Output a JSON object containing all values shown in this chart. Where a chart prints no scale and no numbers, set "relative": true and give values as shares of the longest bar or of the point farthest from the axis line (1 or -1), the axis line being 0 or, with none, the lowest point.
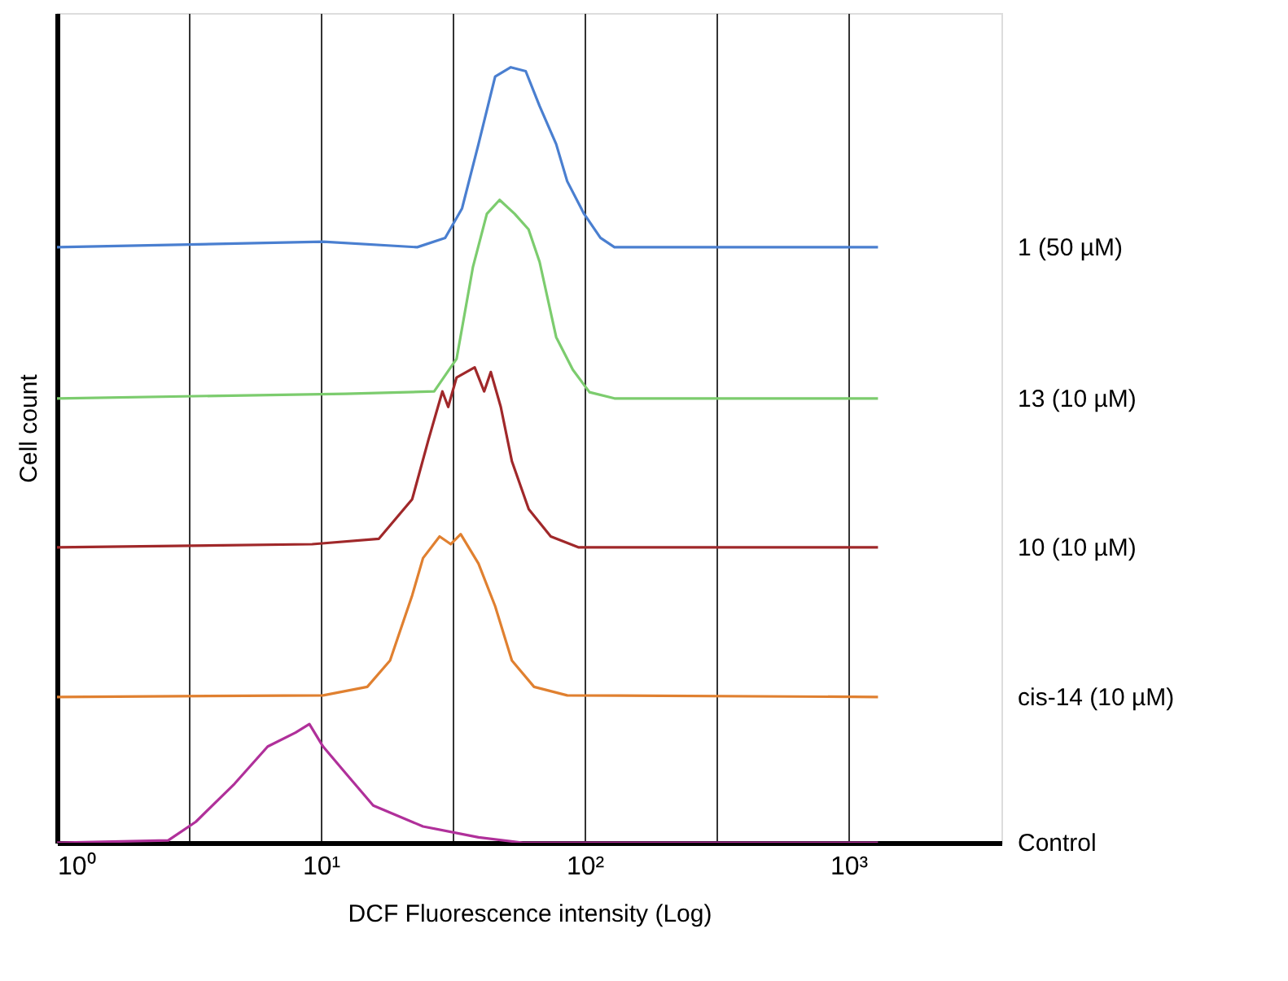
{
  "chart_data": {
    "type": "line",
    "relative": true,
    "xlabel": "DCF Fluorescence intensity (Log)",
    "ylabel": "Cell count",
    "log": "x",
    "grid": "x",
    "legend": false,
    "marker": "none",
    "line_style": "solid",
    "xlim": [
      1,
      3800
    ],
    "xticks": [
      {
        "value": 1,
        "label": "10⁰"
      },
      {
        "value": 3.162,
        "label": null
      },
      {
        "value": 10,
        "label": "10¹"
      },
      {
        "value": 31.62,
        "label": null
      },
      {
        "value": 100,
        "label": "10²"
      },
      {
        "value": 316.2,
        "label": null
      },
      {
        "value": 1000,
        "label": "10³"
      }
    ],
    "series": [
      {
        "name": "1 (50 µM)",
        "color": "#4a7fd0",
        "x": [
          1,
          10.2,
          23.2,
          29.6,
          34.3,
          39.6,
          45.8,
          52.5,
          59.8,
          67.5,
          78.0,
          85.9,
          99.5,
          114.8,
          129.7,
          1294
        ],
        "values": [
          0.768,
          0.775,
          0.768,
          0.78,
          0.818,
          0.901,
          0.988,
          1.0,
          0.995,
          0.95,
          0.901,
          0.853,
          0.811,
          0.78,
          0.768,
          0.768
        ]
      },
      {
        "name": "13 (10 µM)",
        "color": "#7ccc6e",
        "x": [
          1,
          12.4,
          26.9,
          32.7,
          37.7,
          42.6,
          47.6,
          54.3,
          61.3,
          67.5,
          78.0,
          90.2,
          104.3,
          129.7,
          1294
        ],
        "values": [
          0.573,
          0.579,
          0.582,
          0.624,
          0.742,
          0.811,
          0.829,
          0.811,
          0.791,
          0.749,
          0.652,
          0.61,
          0.581,
          0.573,
          0.573
        ]
      },
      {
        "name": "10 (10 µM)",
        "color": "#a0282a",
        "x": [
          1,
          9.27,
          16.6,
          22.2,
          25.6,
          28.9,
          30.4,
          32.7,
          38.3,
          41.6,
          44.1,
          48.1,
          53.0,
          61.4,
          74.4,
          94.6,
          1294
        ],
        "values": [
          0.381,
          0.385,
          0.392,
          0.443,
          0.52,
          0.582,
          0.562,
          0.6,
          0.613,
          0.582,
          0.607,
          0.562,
          0.492,
          0.43,
          0.395,
          0.381,
          0.381
        ]
      },
      {
        "name": "cis-14 (10 µM)",
        "color": "#e08030",
        "x": [
          1,
          10.2,
          15.0,
          18.3,
          22.2,
          24.4,
          28.2,
          31.1,
          33.9,
          39.6,
          45.8,
          53.0,
          64.3,
          85.9,
          1294
        ],
        "values": [
          0.188,
          0.19,
          0.201,
          0.235,
          0.319,
          0.367,
          0.395,
          0.385,
          0.398,
          0.36,
          0.305,
          0.235,
          0.201,
          0.19,
          0.188
        ]
      },
      {
        "name": "Control",
        "color": "#b0309a",
        "x": [
          1,
          2.64,
          3.36,
          4.71,
          6.29,
          8.02,
          9.05,
          10.2,
          12.4,
          15.8,
          24.4,
          39.6,
          58.3,
          1294
        ],
        "values": [
          0,
          0.003,
          0.027,
          0.076,
          0.124,
          0.142,
          0.153,
          0.124,
          0.09,
          0.048,
          0.021,
          0.007,
          0,
          0
        ]
      }
    ]
  }
}
